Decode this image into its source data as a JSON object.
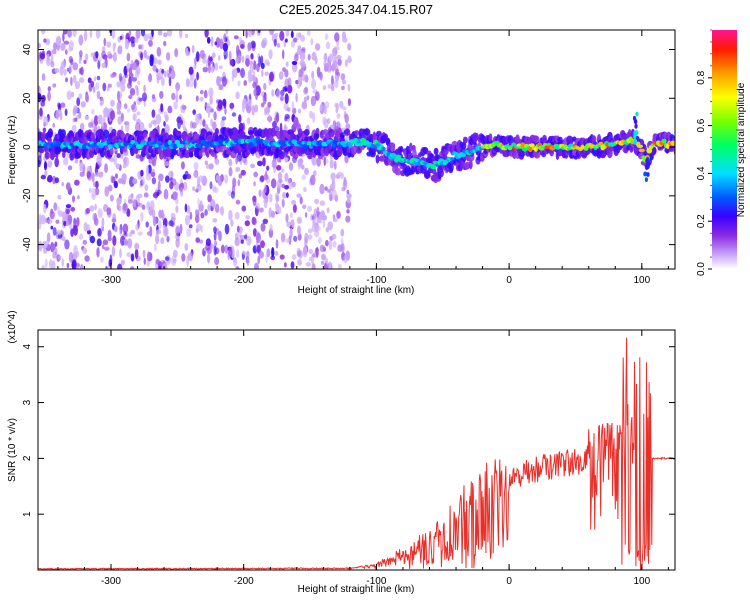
{
  "title": "C2E5.2025.347.04.15.R07",
  "colors": {
    "snr_line": "#e8302b",
    "background": "#ffffff",
    "axis": "#000000"
  },
  "chart_data": [
    {
      "type": "heatmap",
      "title": "C2E5.2025.347.04.15.R07",
      "xlabel": "Height of straight line (km)",
      "ylabel": "Frequency (Hz)",
      "xlim": [
        -355,
        125
      ],
      "ylim": [
        -50,
        48
      ],
      "x_ticks": [
        "-300",
        "-200",
        "-100",
        "0",
        "100"
      ],
      "y_ticks": [
        "-40",
        "-20",
        "0",
        "20",
        "40"
      ],
      "colorbar": {
        "label": "Normalized spectral amplitude",
        "range": [
          0,
          1
        ],
        "ticks": [
          "0.0",
          "0.2",
          "0.4",
          "0.6",
          "0.8"
        ]
      },
      "ridge_center_hz": [
        [
          -355,
          1
        ],
        [
          -300,
          1
        ],
        [
          -250,
          1
        ],
        [
          -200,
          2
        ],
        [
          -150,
          1
        ],
        [
          -110,
          2
        ],
        [
          -100,
          1
        ],
        [
          -90,
          -3
        ],
        [
          -80,
          -6
        ],
        [
          -70,
          -6
        ],
        [
          -60,
          -8
        ],
        [
          -50,
          -6
        ],
        [
          -40,
          -3
        ],
        [
          -30,
          -2
        ],
        [
          -20,
          0
        ],
        [
          -10,
          1
        ],
        [
          0,
          0
        ],
        [
          20,
          0
        ],
        [
          40,
          0
        ],
        [
          60,
          0
        ],
        [
          80,
          1
        ],
        [
          92,
          3
        ],
        [
          98,
          0
        ],
        [
          103,
          -5
        ],
        [
          110,
          2
        ],
        [
          125,
          1
        ]
      ],
      "noise_extent_km": [
        -355,
        -120
      ]
    },
    {
      "type": "line",
      "xlabel": "Height of straight line (km)",
      "ylabel": "SNR (10 * v/v)",
      "y_multiplier": "(x10^4)",
      "xlim": [
        -355,
        125
      ],
      "ylim": [
        0,
        4.3
      ],
      "x_ticks": [
        "-300",
        "-200",
        "-100",
        "0",
        "100"
      ],
      "y_ticks": [
        "1",
        "2",
        "3",
        "4"
      ],
      "series": [
        {
          "name": "SNR",
          "envelope_x": [
            -355,
            -120,
            -100,
            -80,
            -70,
            -60,
            -50,
            -40,
            -30,
            -20,
            -10,
            0,
            10,
            20,
            30,
            40,
            50,
            60,
            70,
            80,
            90,
            95,
            100,
            105,
            110,
            125
          ],
          "envelope_y": [
            0.02,
            0.03,
            0.1,
            0.35,
            0.45,
            0.6,
            0.85,
            1.1,
            1.35,
            1.5,
            1.65,
            1.75,
            1.85,
            1.95,
            2.0,
            2.05,
            2.1,
            2.15,
            2.2,
            2.25,
            2.3,
            2.6,
            2.2,
            2.0,
            2.0,
            2.0
          ]
        }
      ]
    }
  ]
}
